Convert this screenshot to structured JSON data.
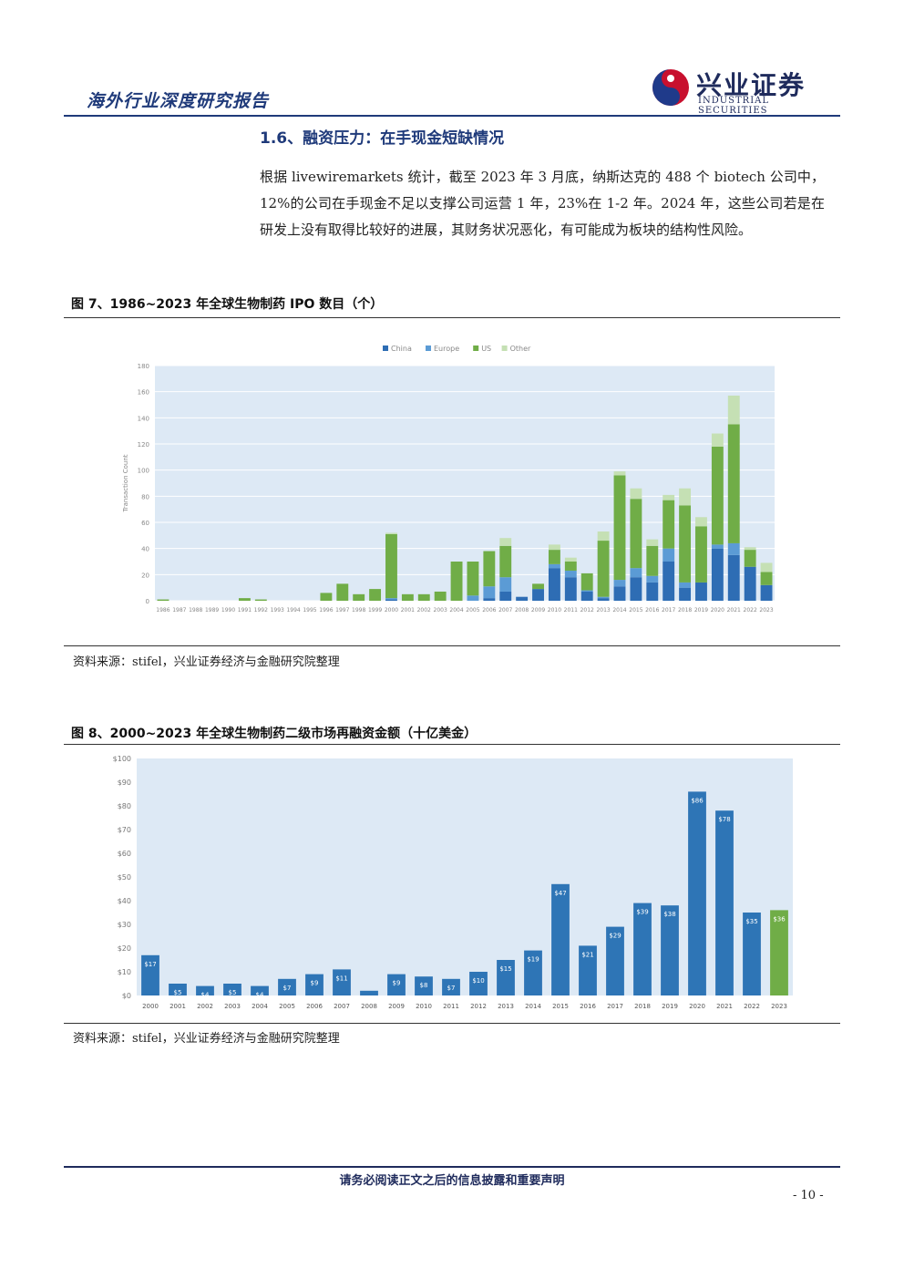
{
  "header": {
    "title": "海外行业深度研究报告",
    "logo_cn": "兴业证券",
    "logo_en": "INDUSTRIAL SECURITIES"
  },
  "section": {
    "heading": "1.6、融资压力：在手现金短缺情况",
    "paragraph": "根据 livewiremarkets 统计，截至 2023 年 3 月底，纳斯达克的 488 个 biotech 公司中，12%的公司在手现金不足以支撑公司运营 1 年，23%在 1-2 年。2024 年，这些公司若是在研发上没有取得比较好的进展，其财务状况恶化，有可能成为板块的结构性风险。"
  },
  "figure7": {
    "title": "图 7、1986~2023 年全球生物制药 IPO 数目（个）",
    "source": "资料来源：stifel，兴业证券经济与金融研究院整理"
  },
  "figure8": {
    "title": "图 8、2000~2023 年全球生物制药二级市场再融资金额（十亿美金）",
    "source": "资料来源：stifel，兴业证券经济与金融研究院整理"
  },
  "footer": {
    "disclaimer": "请务必阅读正文之后的信息披露和重要声明",
    "page": "- 10 -"
  },
  "colors": {
    "China": "#2e6db4",
    "Europe": "#5b9bd5",
    "US": "#70ad47",
    "Other": "#c5e0b4",
    "chart2_bar": "#2e75b6",
    "chart2_last": "#70ad47",
    "plot_bg": "#dde9f5"
  },
  "chart_data": [
    {
      "type": "bar",
      "stacked": true,
      "ylabel": "Transaction Count",
      "ylim": [
        0,
        180
      ],
      "yticks": [
        0,
        20,
        40,
        60,
        80,
        100,
        120,
        140,
        160,
        180
      ],
      "legend_position": "top",
      "categories": [
        "1986",
        "1987",
        "1988",
        "1989",
        "1990",
        "1991",
        "1992",
        "1993",
        "1994",
        "1995",
        "1996",
        "1997",
        "1998",
        "1999",
        "2000",
        "2001",
        "2002",
        "2003",
        "2004",
        "2005",
        "2006",
        "2007",
        "2008",
        "2009",
        "2010",
        "2011",
        "2012",
        "2013",
        "2014",
        "2015",
        "2016",
        "2017",
        "2018",
        "2019",
        "2020",
        "2021",
        "2022",
        "2023"
      ],
      "series": [
        {
          "name": "China",
          "values": [
            0,
            0,
            0,
            0,
            0,
            0,
            0,
            0,
            0,
            0,
            0,
            0,
            0,
            0,
            1,
            0,
            0,
            0,
            0,
            0,
            2,
            7,
            3,
            9,
            25,
            18,
            7,
            2,
            11,
            18,
            14,
            30,
            10,
            14,
            40,
            35,
            26,
            12
          ]
        },
        {
          "name": "Europe",
          "values": [
            0,
            0,
            0,
            0,
            0,
            0,
            0,
            0,
            0,
            0,
            0,
            0,
            0,
            0,
            1,
            0,
            0,
            0,
            0,
            4,
            9,
            11,
            0,
            0,
            3,
            5,
            1,
            1,
            5,
            7,
            5,
            10,
            4,
            0,
            3,
            9,
            0,
            0
          ]
        },
        {
          "name": "US",
          "values": [
            1,
            0,
            0,
            0,
            0,
            2,
            1,
            0,
            0,
            0,
            6,
            13,
            5,
            9,
            49,
            5,
            5,
            7,
            30,
            26,
            27,
            24,
            0,
            4,
            11,
            7,
            13,
            43,
            80,
            53,
            23,
            37,
            59,
            43,
            75,
            91,
            13,
            10
          ]
        },
        {
          "name": "Other",
          "values": [
            0,
            0,
            0,
            0,
            0,
            0,
            0,
            0,
            0,
            0,
            0,
            0,
            0,
            0,
            1,
            0,
            0,
            0,
            0,
            0,
            0,
            6,
            0,
            0,
            4,
            3,
            0,
            7,
            3,
            8,
            5,
            4,
            13,
            7,
            10,
            22,
            2,
            7
          ]
        }
      ]
    },
    {
      "type": "bar",
      "ylim": [
        0,
        100
      ],
      "yticks": [
        "$0",
        "$10",
        "$20",
        "$30",
        "$40",
        "$50",
        "$60",
        "$70",
        "$80",
        "$90",
        "$100"
      ],
      "categories": [
        "2000",
        "2001",
        "2002",
        "2003",
        "2004",
        "2005",
        "2006",
        "2007",
        "2008",
        "2009",
        "2010",
        "2011",
        "2012",
        "2013",
        "2014",
        "2015",
        "2016",
        "2017",
        "2018",
        "2019",
        "2020",
        "2021",
        "2022",
        "2023"
      ],
      "values": [
        17,
        5,
        4,
        5,
        4,
        7,
        9,
        11,
        2,
        9,
        8,
        7,
        10,
        15,
        19,
        47,
        21,
        29,
        39,
        38,
        86,
        78,
        35,
        36
      ],
      "labels": [
        "$17",
        "$5",
        "$4",
        "$5",
        "$4",
        "$7",
        "$9",
        "$11",
        "$2",
        "$9",
        "$8",
        "$7",
        "$10",
        "$15",
        "$19",
        "$47",
        "$21",
        "$29",
        "$39",
        "$38",
        "$86",
        "$78",
        "$35",
        "$36"
      ]
    }
  ]
}
